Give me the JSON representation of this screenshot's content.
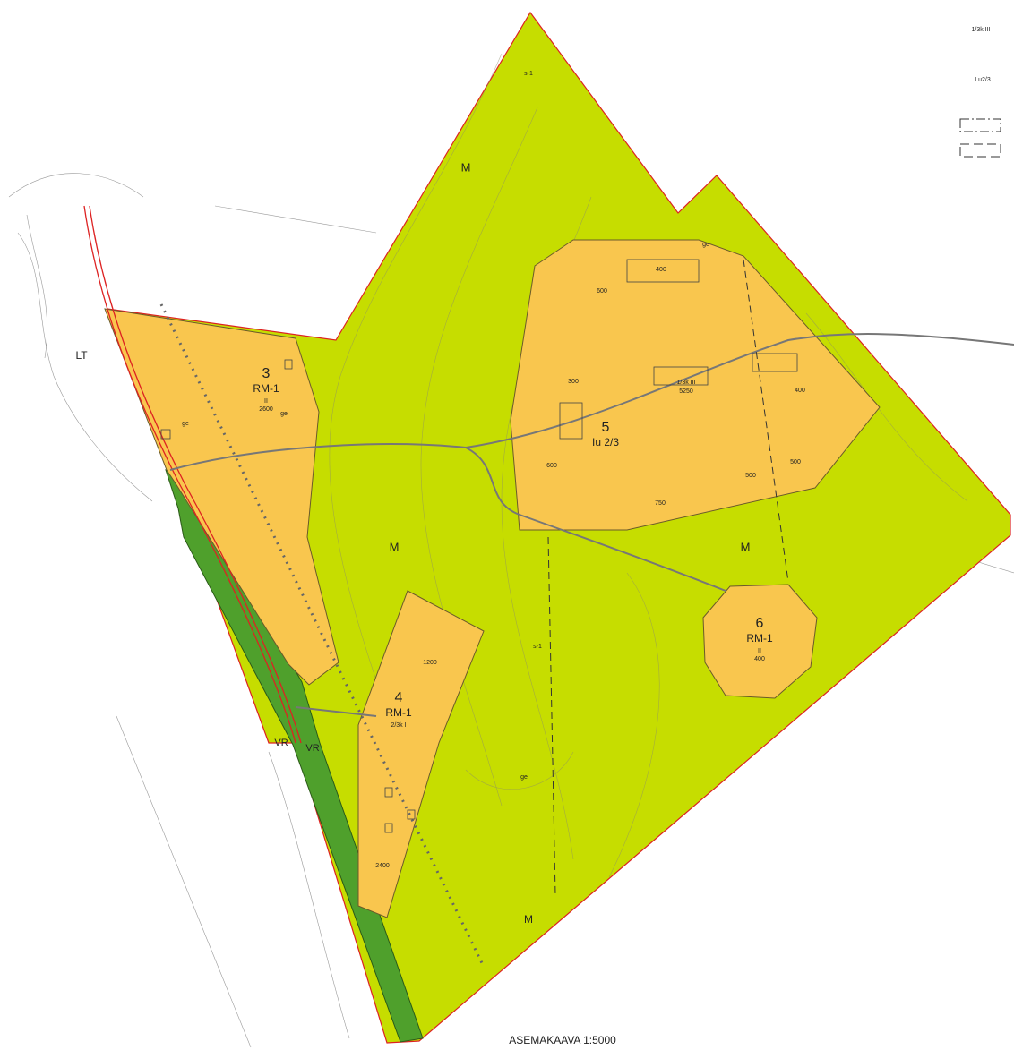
{
  "title": "ASEMAKAAVA 1:5000",
  "legend": [
    "1/3k III",
    "I u2/3"
  ],
  "areas": [
    "M",
    "M",
    "M",
    "M",
    "s-1",
    "s-1",
    "VR",
    "VR",
    "LT",
    "ge",
    "ge",
    "ge",
    "ge"
  ],
  "blocks": [
    {
      "number": "3",
      "code": "RM-1",
      "floors": "II",
      "area": 2600
    },
    {
      "number": "4",
      "code": "RM-1",
      "floors": "2/3k I",
      "area": 1200
    },
    {
      "number": "5",
      "code": "Iu 2/3"
    },
    {
      "number": "6",
      "code": "RM-1",
      "floors": "II",
      "area": 400
    }
  ],
  "lots": [
    "1/3k III",
    5250,
    400,
    600,
    300,
    400,
    600,
    500,
    500,
    750,
    2400
  ]
}
